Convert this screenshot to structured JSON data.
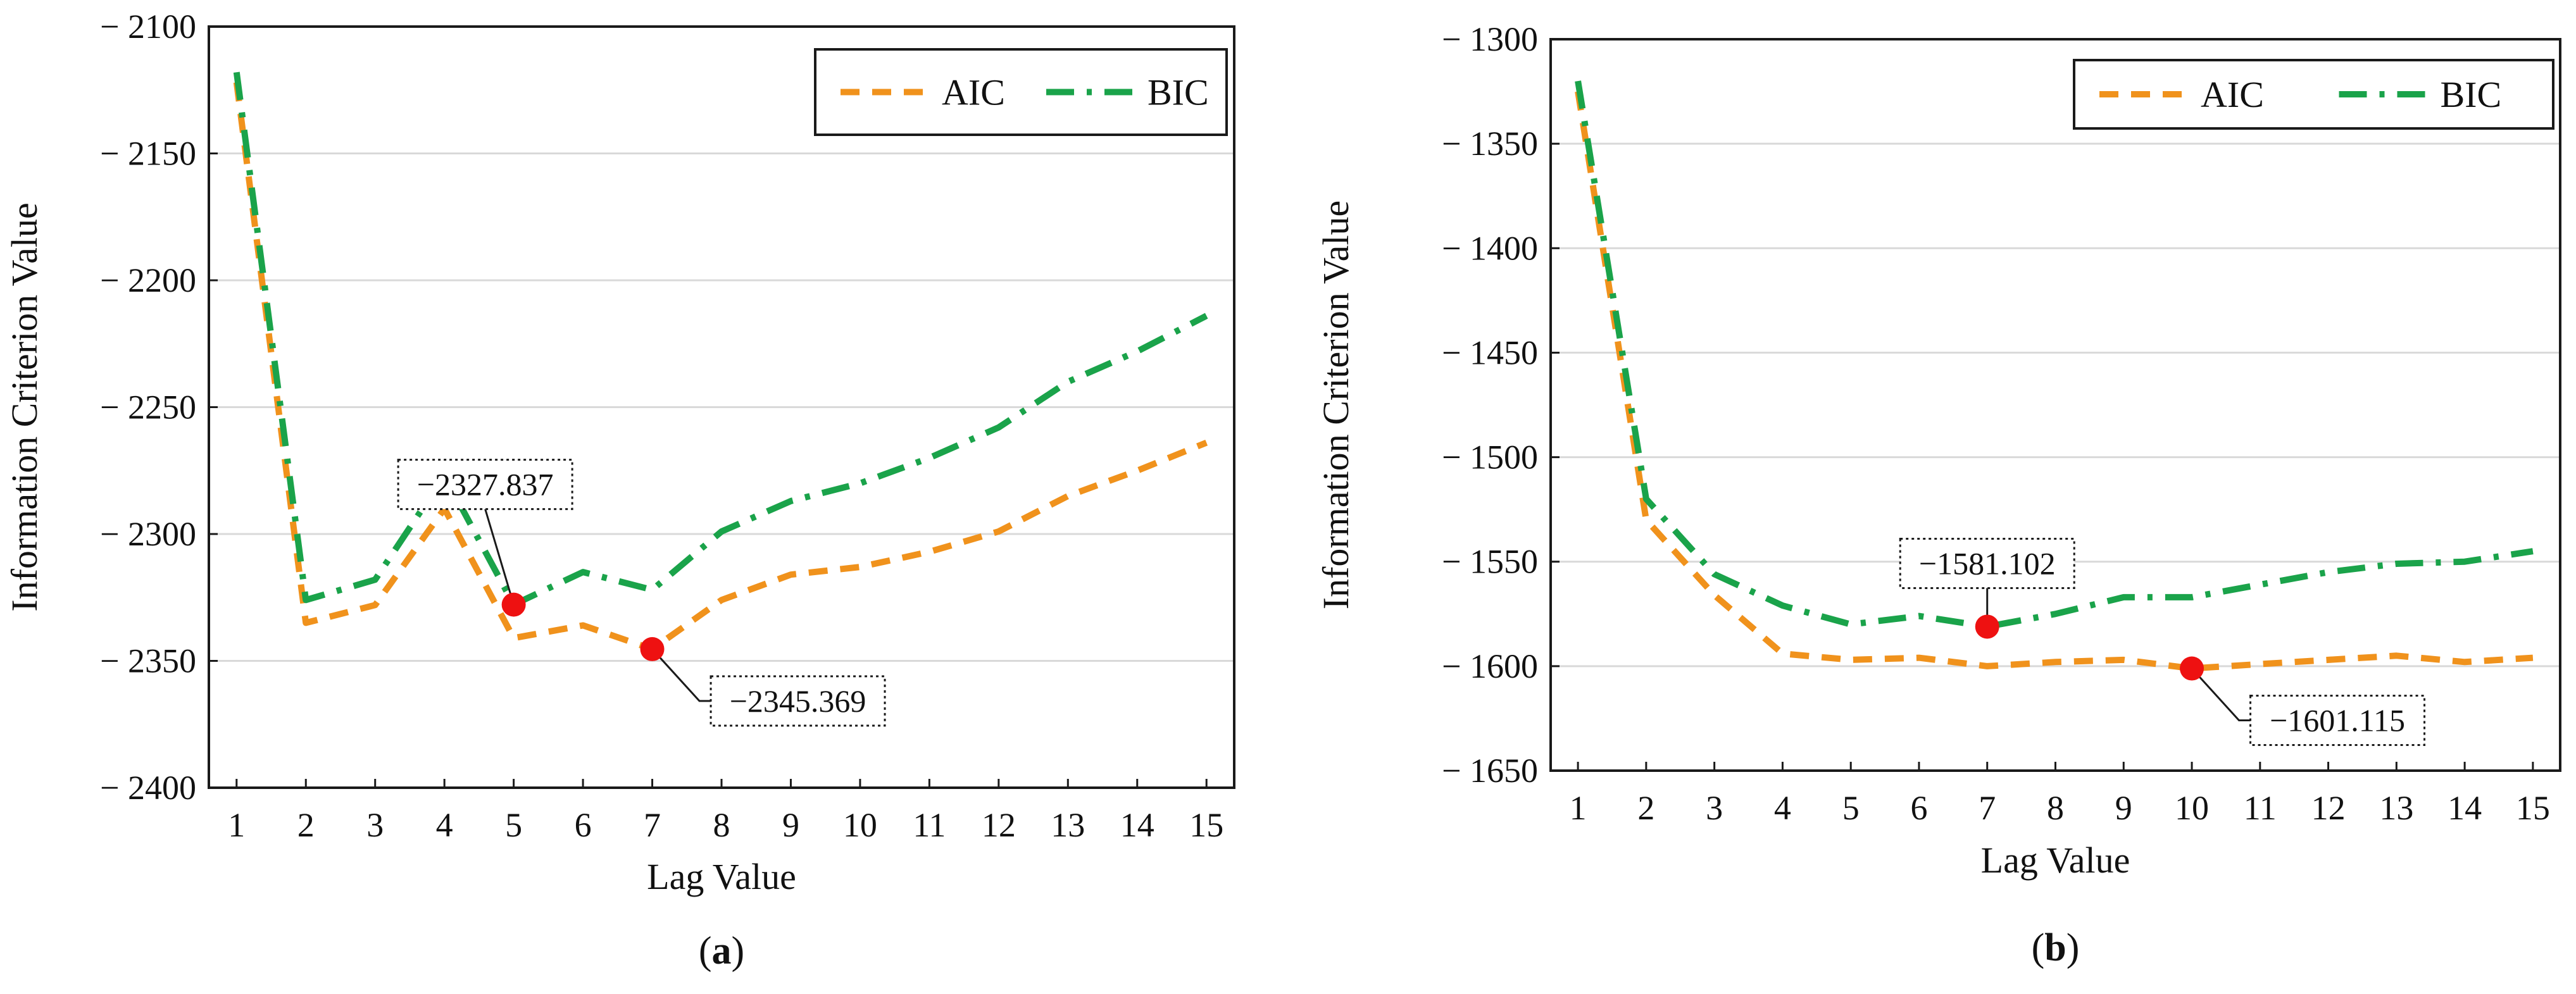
{
  "colors": {
    "aic": "#f0921c",
    "bic": "#1aa34a",
    "marker": "#ee1111",
    "grid": "#d9d9d9",
    "frame": "#1a1a1a"
  },
  "chart_data": [
    {
      "type": "line",
      "panel_label_prefix": "(",
      "panel_label_letter": "a",
      "panel_label_suffix": ")",
      "xlabel": "Lag Value",
      "ylabel": "Information Criterion Value",
      "x": [
        1,
        2,
        3,
        4,
        5,
        6,
        7,
        8,
        9,
        10,
        11,
        12,
        13,
        14,
        15
      ],
      "xlim": [
        0.6,
        15.4
      ],
      "ylim": [
        -2400,
        -2100
      ],
      "yticks": [
        -2100,
        -2150,
        -2200,
        -2250,
        -2300,
        -2350,
        -2400
      ],
      "ytick_labels": [
        "− 2100",
        "− 2150",
        "− 2200",
        "− 2250",
        "− 2300",
        "− 2350",
        "− 2400"
      ],
      "grid": true,
      "legend_position": "top-right",
      "series": [
        {
          "name": "AIC",
          "style": "dashed",
          "values": [
            -2122,
            -2335,
            -2328,
            -2290,
            -2341,
            -2336,
            -2345.369,
            -2326,
            -2316,
            -2313,
            -2307,
            -2299,
            -2285,
            -2275,
            -2264
          ]
        },
        {
          "name": "BIC",
          "style": "dash-dot",
          "values": [
            -2118,
            -2326,
            -2318,
            -2277,
            -2327.837,
            -2315,
            -2322,
            -2299,
            -2287,
            -2280,
            -2270,
            -2258,
            -2240,
            -2228,
            -2214
          ]
        }
      ],
      "annotations": [
        {
          "text": "−2327.837",
          "x": 5,
          "y": -2327.837,
          "series": "BIC",
          "placement": "above-left"
        },
        {
          "text": "−2345.369",
          "x": 7,
          "y": -2345.369,
          "series": "AIC",
          "placement": "below-right"
        }
      ]
    },
    {
      "type": "line",
      "panel_label_prefix": "(",
      "panel_label_letter": "b",
      "panel_label_suffix": ")",
      "xlabel": "Lag Value",
      "ylabel": "Information Criterion Value",
      "x": [
        1,
        2,
        3,
        4,
        5,
        6,
        7,
        8,
        9,
        10,
        11,
        12,
        13,
        14,
        15
      ],
      "xlim": [
        0.6,
        15.4
      ],
      "ylim": [
        -1650,
        -1300
      ],
      "yticks": [
        -1300,
        -1350,
        -1400,
        -1450,
        -1500,
        -1550,
        -1600,
        -1650
      ],
      "ytick_labels": [
        "− 1300",
        "− 1350",
        "− 1400",
        "− 1450",
        "− 1500",
        "− 1550",
        "− 1600",
        "− 1650"
      ],
      "grid": true,
      "legend_position": "top-right",
      "series": [
        {
          "name": "AIC",
          "style": "dashed",
          "values": [
            -1325,
            -1530,
            -1566,
            -1594,
            -1597,
            -1596,
            -1600,
            -1598,
            -1597,
            -1601.115,
            -1599,
            -1597,
            -1595,
            -1598,
            -1596
          ]
        },
        {
          "name": "BIC",
          "style": "dash-dot",
          "values": [
            -1320,
            -1520,
            -1556,
            -1571,
            -1580,
            -1576,
            -1581.102,
            -1575,
            -1567,
            -1567,
            -1561,
            -1555,
            -1551,
            -1550,
            -1545
          ]
        }
      ],
      "annotations": [
        {
          "text": "−1581.102",
          "x": 7,
          "y": -1581.102,
          "series": "BIC",
          "placement": "above"
        },
        {
          "text": "−1601.115",
          "x": 10,
          "y": -1601.115,
          "series": "AIC",
          "placement": "below-right"
        }
      ]
    }
  ]
}
